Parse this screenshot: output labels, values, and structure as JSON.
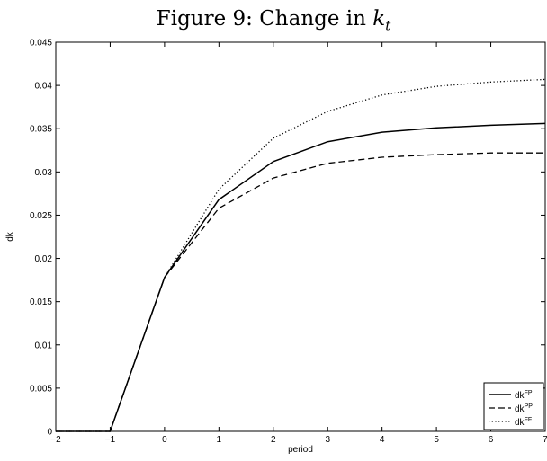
{
  "chart_data": {
    "type": "line",
    "title": {
      "prefix": "Figure 9:  Change in ",
      "math_base": "k",
      "math_sub": "t"
    },
    "xlabel": "period",
    "ylabel": "dk",
    "xlim": [
      -2,
      7
    ],
    "ylim": [
      0,
      0.045
    ],
    "xticks": [
      -2,
      -1,
      0,
      1,
      2,
      3,
      4,
      5,
      6,
      7
    ],
    "yticks": [
      0,
      0.005,
      0.01,
      0.015,
      0.02,
      0.025,
      0.03,
      0.035,
      0.04,
      0.045
    ],
    "grid": false,
    "legend_position": "bottom-right",
    "x": [
      -2,
      -1,
      0,
      1,
      2,
      3,
      4,
      5,
      6,
      7
    ],
    "series": [
      {
        "base": "dk",
        "sup": "FP",
        "style": "solid",
        "color": "#000000",
        "values": [
          0,
          0,
          0.0178,
          0.0268,
          0.0312,
          0.0335,
          0.0346,
          0.0351,
          0.0354,
          0.0356
        ]
      },
      {
        "base": "dk",
        "sup": "PP",
        "style": "dashed",
        "color": "#000000",
        "values": [
          0,
          0,
          0.0178,
          0.0258,
          0.0293,
          0.031,
          0.0317,
          0.032,
          0.0322,
          0.0322
        ]
      },
      {
        "base": "dk",
        "sup": "FF",
        "style": "dotted",
        "color": "#000000",
        "values": [
          0,
          0,
          0.0178,
          0.028,
          0.0339,
          0.037,
          0.0389,
          0.0399,
          0.0404,
          0.0407
        ]
      }
    ]
  }
}
